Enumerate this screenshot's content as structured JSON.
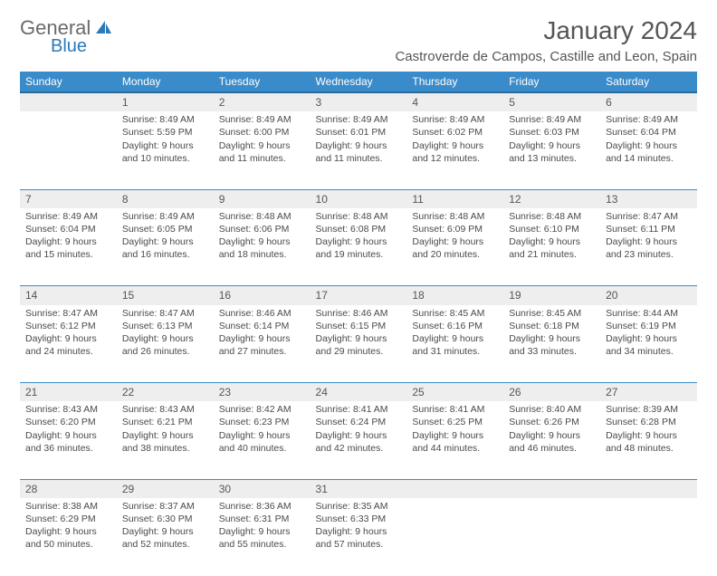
{
  "logo": {
    "text1": "General",
    "text2": "Blue"
  },
  "title": "January 2024",
  "location": "Castroverde de Campos, Castille and Leon, Spain",
  "colors": {
    "header_bg": "#3a8bc9",
    "header_border": "#2a6a9a",
    "daynum_bg": "#eeeeee",
    "text": "#4a4a4a",
    "logo_blue": "#2a7ab8"
  },
  "weekdays": [
    "Sunday",
    "Monday",
    "Tuesday",
    "Wednesday",
    "Thursday",
    "Friday",
    "Saturday"
  ],
  "weeks": [
    {
      "nums": [
        "",
        "1",
        "2",
        "3",
        "4",
        "5",
        "6"
      ],
      "cells": [
        null,
        {
          "sr": "Sunrise: 8:49 AM",
          "ss": "Sunset: 5:59 PM",
          "d1": "Daylight: 9 hours",
          "d2": "and 10 minutes."
        },
        {
          "sr": "Sunrise: 8:49 AM",
          "ss": "Sunset: 6:00 PM",
          "d1": "Daylight: 9 hours",
          "d2": "and 11 minutes."
        },
        {
          "sr": "Sunrise: 8:49 AM",
          "ss": "Sunset: 6:01 PM",
          "d1": "Daylight: 9 hours",
          "d2": "and 11 minutes."
        },
        {
          "sr": "Sunrise: 8:49 AM",
          "ss": "Sunset: 6:02 PM",
          "d1": "Daylight: 9 hours",
          "d2": "and 12 minutes."
        },
        {
          "sr": "Sunrise: 8:49 AM",
          "ss": "Sunset: 6:03 PM",
          "d1": "Daylight: 9 hours",
          "d2": "and 13 minutes."
        },
        {
          "sr": "Sunrise: 8:49 AM",
          "ss": "Sunset: 6:04 PM",
          "d1": "Daylight: 9 hours",
          "d2": "and 14 minutes."
        }
      ]
    },
    {
      "nums": [
        "7",
        "8",
        "9",
        "10",
        "11",
        "12",
        "13"
      ],
      "cells": [
        {
          "sr": "Sunrise: 8:49 AM",
          "ss": "Sunset: 6:04 PM",
          "d1": "Daylight: 9 hours",
          "d2": "and 15 minutes."
        },
        {
          "sr": "Sunrise: 8:49 AM",
          "ss": "Sunset: 6:05 PM",
          "d1": "Daylight: 9 hours",
          "d2": "and 16 minutes."
        },
        {
          "sr": "Sunrise: 8:48 AM",
          "ss": "Sunset: 6:06 PM",
          "d1": "Daylight: 9 hours",
          "d2": "and 18 minutes."
        },
        {
          "sr": "Sunrise: 8:48 AM",
          "ss": "Sunset: 6:08 PM",
          "d1": "Daylight: 9 hours",
          "d2": "and 19 minutes."
        },
        {
          "sr": "Sunrise: 8:48 AM",
          "ss": "Sunset: 6:09 PM",
          "d1": "Daylight: 9 hours",
          "d2": "and 20 minutes."
        },
        {
          "sr": "Sunrise: 8:48 AM",
          "ss": "Sunset: 6:10 PM",
          "d1": "Daylight: 9 hours",
          "d2": "and 21 minutes."
        },
        {
          "sr": "Sunrise: 8:47 AM",
          "ss": "Sunset: 6:11 PM",
          "d1": "Daylight: 9 hours",
          "d2": "and 23 minutes."
        }
      ]
    },
    {
      "nums": [
        "14",
        "15",
        "16",
        "17",
        "18",
        "19",
        "20"
      ],
      "cells": [
        {
          "sr": "Sunrise: 8:47 AM",
          "ss": "Sunset: 6:12 PM",
          "d1": "Daylight: 9 hours",
          "d2": "and 24 minutes."
        },
        {
          "sr": "Sunrise: 8:47 AM",
          "ss": "Sunset: 6:13 PM",
          "d1": "Daylight: 9 hours",
          "d2": "and 26 minutes."
        },
        {
          "sr": "Sunrise: 8:46 AM",
          "ss": "Sunset: 6:14 PM",
          "d1": "Daylight: 9 hours",
          "d2": "and 27 minutes."
        },
        {
          "sr": "Sunrise: 8:46 AM",
          "ss": "Sunset: 6:15 PM",
          "d1": "Daylight: 9 hours",
          "d2": "and 29 minutes."
        },
        {
          "sr": "Sunrise: 8:45 AM",
          "ss": "Sunset: 6:16 PM",
          "d1": "Daylight: 9 hours",
          "d2": "and 31 minutes."
        },
        {
          "sr": "Sunrise: 8:45 AM",
          "ss": "Sunset: 6:18 PM",
          "d1": "Daylight: 9 hours",
          "d2": "and 33 minutes."
        },
        {
          "sr": "Sunrise: 8:44 AM",
          "ss": "Sunset: 6:19 PM",
          "d1": "Daylight: 9 hours",
          "d2": "and 34 minutes."
        }
      ]
    },
    {
      "nums": [
        "21",
        "22",
        "23",
        "24",
        "25",
        "26",
        "27"
      ],
      "cells": [
        {
          "sr": "Sunrise: 8:43 AM",
          "ss": "Sunset: 6:20 PM",
          "d1": "Daylight: 9 hours",
          "d2": "and 36 minutes."
        },
        {
          "sr": "Sunrise: 8:43 AM",
          "ss": "Sunset: 6:21 PM",
          "d1": "Daylight: 9 hours",
          "d2": "and 38 minutes."
        },
        {
          "sr": "Sunrise: 8:42 AM",
          "ss": "Sunset: 6:23 PM",
          "d1": "Daylight: 9 hours",
          "d2": "and 40 minutes."
        },
        {
          "sr": "Sunrise: 8:41 AM",
          "ss": "Sunset: 6:24 PM",
          "d1": "Daylight: 9 hours",
          "d2": "and 42 minutes."
        },
        {
          "sr": "Sunrise: 8:41 AM",
          "ss": "Sunset: 6:25 PM",
          "d1": "Daylight: 9 hours",
          "d2": "and 44 minutes."
        },
        {
          "sr": "Sunrise: 8:40 AM",
          "ss": "Sunset: 6:26 PM",
          "d1": "Daylight: 9 hours",
          "d2": "and 46 minutes."
        },
        {
          "sr": "Sunrise: 8:39 AM",
          "ss": "Sunset: 6:28 PM",
          "d1": "Daylight: 9 hours",
          "d2": "and 48 minutes."
        }
      ]
    },
    {
      "nums": [
        "28",
        "29",
        "30",
        "31",
        "",
        "",
        ""
      ],
      "cells": [
        {
          "sr": "Sunrise: 8:38 AM",
          "ss": "Sunset: 6:29 PM",
          "d1": "Daylight: 9 hours",
          "d2": "and 50 minutes."
        },
        {
          "sr": "Sunrise: 8:37 AM",
          "ss": "Sunset: 6:30 PM",
          "d1": "Daylight: 9 hours",
          "d2": "and 52 minutes."
        },
        {
          "sr": "Sunrise: 8:36 AM",
          "ss": "Sunset: 6:31 PM",
          "d1": "Daylight: 9 hours",
          "d2": "and 55 minutes."
        },
        {
          "sr": "Sunrise: 8:35 AM",
          "ss": "Sunset: 6:33 PM",
          "d1": "Daylight: 9 hours",
          "d2": "and 57 minutes."
        },
        null,
        null,
        null
      ]
    }
  ]
}
